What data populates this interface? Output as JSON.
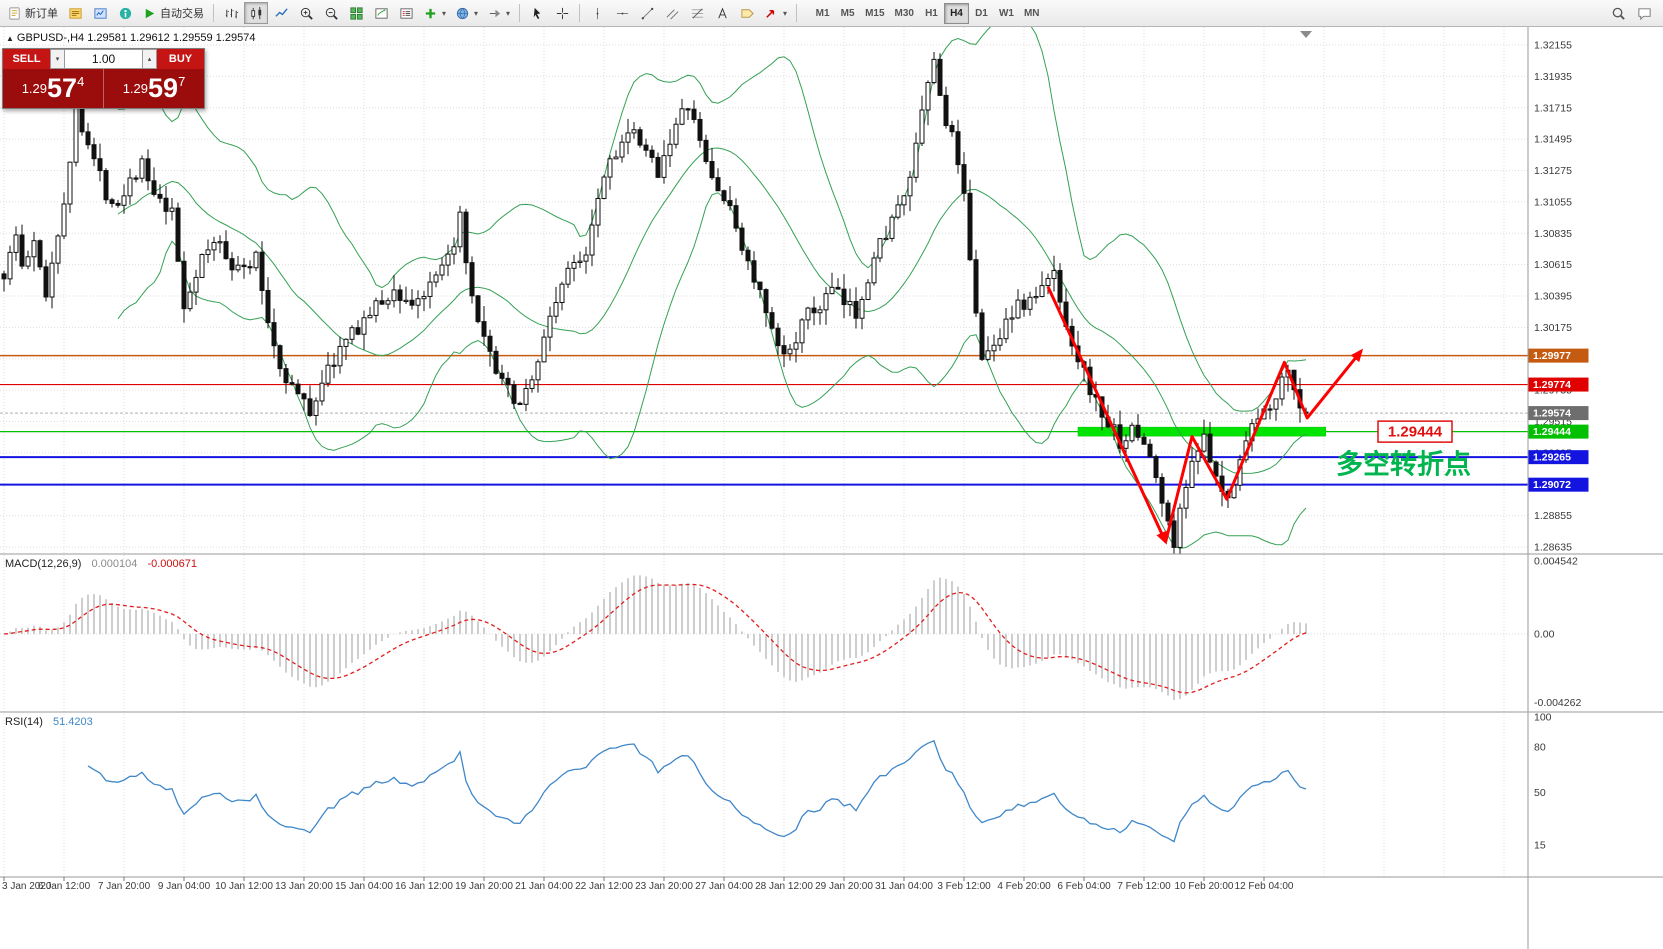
{
  "icons": {
    "caret_down": "▾",
    "caret_up": "▴"
  },
  "toolbar": {
    "buttons": [
      {
        "name": "new-order",
        "icon": "doc",
        "label": "新订单"
      },
      {
        "name": "metaeditor",
        "icon": "metaeditor"
      },
      {
        "name": "market-watch",
        "icon": "terminal"
      },
      {
        "name": "community",
        "icon": "community"
      },
      {
        "name": "auto-trading",
        "icon": "play",
        "label": "自动交易"
      },
      {
        "sep": true
      },
      {
        "name": "bar-chart",
        "icon": "bars"
      },
      {
        "name": "candlestick-chart",
        "icon": "candles",
        "active": true
      },
      {
        "name": "line-chart",
        "icon": "line"
      },
      {
        "name": "zoom-in",
        "icon": "zoom-in"
      },
      {
        "name": "zoom-out",
        "icon": "zoom-out"
      },
      {
        "name": "tile-windows",
        "icon": "tile"
      },
      {
        "name": "indicator-window",
        "icon": "ind"
      },
      {
        "name": "object-list",
        "icon": "objlist"
      },
      {
        "name": "add-indicator",
        "icon": "plus",
        "caret": true
      },
      {
        "name": "navigator",
        "icon": "globe",
        "caret": true
      },
      {
        "name": "chart-shift",
        "icon": "shift",
        "caret": true
      },
      {
        "sep": true
      },
      {
        "name": "cursor",
        "icon": "cursor"
      },
      {
        "name": "crosshair",
        "icon": "crosshair"
      },
      {
        "sep": true
      },
      {
        "name": "vertical-line",
        "icon": "vline"
      },
      {
        "name": "horizontal-line",
        "icon": "hline"
      },
      {
        "name": "trendline",
        "icon": "tline"
      },
      {
        "name": "equidistant-channel",
        "icon": "channel"
      },
      {
        "name": "fibonacci",
        "icon": "fibo"
      },
      {
        "name": "text",
        "icon": "textA"
      },
      {
        "name": "text-label",
        "icon": "label"
      },
      {
        "name": "arrow-objects",
        "icon": "arrowobj",
        "caret": true
      },
      {
        "sep": true
      }
    ],
    "timeframes": [
      {
        "label": "M1"
      },
      {
        "label": "M5"
      },
      {
        "label": "M15"
      },
      {
        "label": "M30"
      },
      {
        "label": "H1"
      },
      {
        "label": "H4",
        "active": true
      },
      {
        "label": "D1"
      },
      {
        "label": "W1"
      },
      {
        "label": "MN"
      }
    ],
    "right_buttons": [
      {
        "name": "search",
        "icon": "search"
      },
      {
        "name": "chat",
        "icon": "chat"
      }
    ]
  },
  "chart_header": {
    "arrow": "▲",
    "title": "GBPUSD-,H4 1.29581 1.29612 1.29559 1.29574"
  },
  "trade_panel": {
    "sell_label": "SELL",
    "buy_label": "BUY",
    "volume": "1.00",
    "sell_price_small": "1.29",
    "sell_price_big": "57",
    "sell_price_sup": "4",
    "buy_price_small": "1.29",
    "buy_price_big": "59",
    "buy_price_sup": "7"
  },
  "indicators": {
    "macd_label": "MACD(12,26,9)",
    "macd_value": "0.000104",
    "macd_signal": "-0.000671",
    "rsi_label": "RSI(14)",
    "rsi_value": "51.4203"
  },
  "chart_data": {
    "type": "candlestick",
    "symbol": "GBPUSD-",
    "period": "H4",
    "last_bar": {
      "open": 1.29581,
      "high": 1.29612,
      "low": 1.29559,
      "close": 1.29574
    },
    "candle_count": 218,
    "noise_seed": 1337,
    "candle_colors": {
      "bull": "#ffffff",
      "bear": "#111111",
      "outline": "#111111"
    },
    "bollinger": {
      "period": 20,
      "deviation": 2,
      "color": "#35a054"
    },
    "grid_step_candles": 10,
    "price_axis": {
      "ticks": [
        "1.32155",
        "1.31935",
        "1.31715",
        "1.31495",
        "1.31275",
        "1.31055",
        "1.30835",
        "1.30615",
        "1.30395",
        "1.30175",
        "1.29955",
        "1.29735",
        "1.29515",
        "1.29295",
        "1.29075",
        "1.28855",
        "1.28635"
      ]
    },
    "time_labels": [
      "3 Jan 2020",
      "6 Jan 12:00",
      "7 Jan 20:00",
      "9 Jan 04:00",
      "10 Jan 12:00",
      "13 Jan 20:00",
      "15 Jan 04:00",
      "16 Jan 12:00",
      "19 Jan 20:00",
      "21 Jan 04:00",
      "22 Jan 12:00",
      "23 Jan 20:00",
      "27 Jan 04:00",
      "28 Jan 12:00",
      "29 Jan 20:00",
      "31 Jan 04:00",
      "3 Feb 12:00",
      "4 Feb 20:00",
      "6 Feb 04:00",
      "7 Feb 12:00",
      "10 Feb 20:00",
      "12 Feb 04:00"
    ],
    "levels": [
      {
        "price": 1.29977,
        "label": "1.29977",
        "color": "#C55A11",
        "width": 1.4
      },
      {
        "price": 1.29774,
        "label": "1.29774",
        "color": "#E00000",
        "width": 1.2
      },
      {
        "price": 1.29265,
        "label": "1.29265",
        "color": "#1414E0",
        "width": 2
      },
      {
        "price": 1.29072,
        "label": "1.29072",
        "color": "#1414E0",
        "width": 2
      }
    ],
    "bid": {
      "price": 1.29574,
      "label": "1.29574",
      "box_color": "#6e6e6e"
    },
    "green_zone": {
      "price": 1.29444,
      "from_index": 179,
      "to_index": 220.3,
      "band_color": "#00E400",
      "line_color": "#00C000",
      "label": "1.29444",
      "label_box_color": "#00C000"
    },
    "arrows": {
      "color": "#FF0000",
      "width": 3,
      "segments": [
        [
          [
            174,
            1.3046
          ],
          [
            193.6,
            1.2867
          ]
        ],
        [
          [
            193.6,
            1.2867
          ],
          [
            198,
            1.2941
          ],
          [
            203.8,
            1.2897
          ],
          [
            213.4,
            1.2993
          ],
          [
            217.2,
            1.2954
          ],
          [
            226.2,
            1.3001
          ]
        ]
      ]
    },
    "annotations": {
      "turning_point": {
        "text": "多空转折点",
        "index": 222,
        "price": 1.2915,
        "color": "#00B44E",
        "font_size": 27
      },
      "price_tag": {
        "text": "1.29444",
        "index": 229,
        "price": 1.29444,
        "color": "#E01010"
      }
    },
    "macd": {
      "fast": 12,
      "slow": 26,
      "signal": 9,
      "hist_color": "#b4b4b4",
      "signal_color": "#e02020",
      "axis_ticks": [
        {
          "label": "0.004542",
          "value": 0.004542
        },
        {
          "label": "0.00",
          "value": 0.0
        },
        {
          "label": "-0.004262",
          "value": -0.004262
        }
      ]
    },
    "rsi": {
      "period": 14,
      "color": "#3f87c9",
      "axis_ticks": [
        {
          "label": "100",
          "value": 100
        },
        {
          "label": "80",
          "value": 80
        },
        {
          "label": "50",
          "value": 50
        },
        {
          "label": "15",
          "value": 15
        }
      ]
    },
    "waypoints": [
      [
        0,
        1.3055
      ],
      [
        2,
        1.3082
      ],
      [
        3,
        1.306
      ],
      [
        5,
        1.3075
      ],
      [
        7,
        1.3042
      ],
      [
        9,
        1.3085
      ],
      [
        11,
        1.313
      ],
      [
        12,
        1.3172
      ],
      [
        13,
        1.316
      ],
      [
        15,
        1.3135
      ],
      [
        17,
        1.3112
      ],
      [
        19,
        1.3105
      ],
      [
        21,
        1.3122
      ],
      [
        23,
        1.3132
      ],
      [
        25,
        1.3108
      ],
      [
        28,
        1.3096
      ],
      [
        30,
        1.3032
      ],
      [
        32,
        1.3056
      ],
      [
        34,
        1.3072
      ],
      [
        36,
        1.3078
      ],
      [
        38,
        1.3062
      ],
      [
        40,
        1.3058
      ],
      [
        42,
        1.3066
      ],
      [
        44,
        1.3022
      ],
      [
        46,
        1.299
      ],
      [
        48,
        1.2976
      ],
      [
        51,
        1.2958
      ],
      [
        53,
        1.298
      ],
      [
        56,
        1.3002
      ],
      [
        59,
        1.3018
      ],
      [
        62,
        1.3032
      ],
      [
        65,
        1.3042
      ],
      [
        68,
        1.3034
      ],
      [
        71,
        1.3044
      ],
      [
        74,
        1.3064
      ],
      [
        76,
        1.3094
      ],
      [
        77,
        1.3058
      ],
      [
        79,
        1.3018
      ],
      [
        81,
        1.2996
      ],
      [
        83,
        1.2982
      ],
      [
        85,
        1.2962
      ],
      [
        87,
        1.2974
      ],
      [
        89,
        1.2992
      ],
      [
        91,
        1.3026
      ],
      [
        93,
        1.3048
      ],
      [
        95,
        1.3062
      ],
      [
        97,
        1.3072
      ],
      [
        99,
        1.3112
      ],
      [
        101,
        1.3136
      ],
      [
        103,
        1.3148
      ],
      [
        105,
        1.3152
      ],
      [
        107,
        1.3138
      ],
      [
        109,
        1.3128
      ],
      [
        111,
        1.315
      ],
      [
        113,
        1.3166
      ],
      [
        114,
        1.3174
      ],
      [
        116,
        1.3146
      ],
      [
        118,
        1.3122
      ],
      [
        120,
        1.3108
      ],
      [
        122,
        1.3088
      ],
      [
        124,
        1.3062
      ],
      [
        126,
        1.304
      ],
      [
        128,
        1.3012
      ],
      [
        130,
        1.2996
      ],
      [
        132,
        1.3012
      ],
      [
        134,
        1.3026
      ],
      [
        136,
        1.3032
      ],
      [
        138,
        1.3044
      ],
      [
        140,
        1.3034
      ],
      [
        142,
        1.3028
      ],
      [
        144,
        1.3054
      ],
      [
        146,
        1.3076
      ],
      [
        148,
        1.3094
      ],
      [
        150,
        1.3106
      ],
      [
        152,
        1.3142
      ],
      [
        154,
        1.3188
      ],
      [
        155,
        1.3206
      ],
      [
        156,
        1.3178
      ],
      [
        158,
        1.315
      ],
      [
        160,
        1.3106
      ],
      [
        162,
        1.3032
      ],
      [
        163,
        1.2994
      ],
      [
        165,
        1.3004
      ],
      [
        167,
        1.3024
      ],
      [
        169,
        1.3032
      ],
      [
        171,
        1.3036
      ],
      [
        173,
        1.3044
      ],
      [
        175,
        1.3056
      ],
      [
        176,
        1.3036
      ],
      [
        178,
        1.3008
      ],
      [
        180,
        1.2986
      ],
      [
        182,
        1.2964
      ],
      [
        184,
        1.295
      ],
      [
        186,
        1.2938
      ],
      [
        188,
        1.2944
      ],
      [
        190,
        1.2938
      ],
      [
        192,
        1.2912
      ],
      [
        194,
        1.2878
      ],
      [
        195,
        1.2868
      ],
      [
        197,
        1.2906
      ],
      [
        198,
        1.2928
      ],
      [
        200,
        1.2938
      ],
      [
        202,
        1.2908
      ],
      [
        204,
        1.2896
      ],
      [
        206,
        1.2928
      ],
      [
        208,
        1.2948
      ],
      [
        210,
        1.2958
      ],
      [
        212,
        1.2972
      ],
      [
        214,
        1.2986
      ],
      [
        215,
        1.2978
      ],
      [
        216,
        1.2962
      ],
      [
        217,
        1.2957
      ]
    ]
  }
}
